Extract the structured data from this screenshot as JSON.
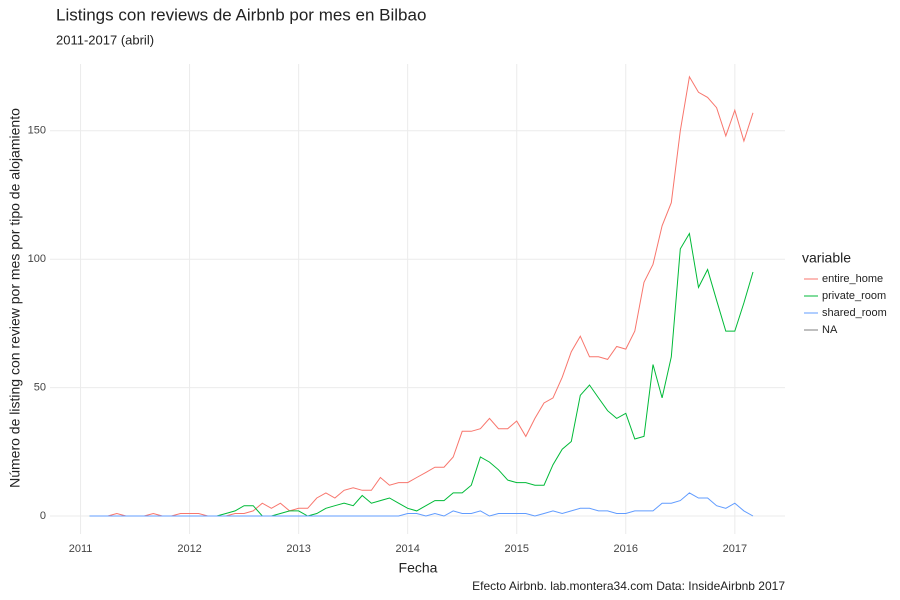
{
  "chart_data": {
    "type": "line",
    "title": "Listings con reviews de Airbnb por mes en Bilbao",
    "subtitle": "2011-2017 (abril)",
    "x_label": "Fecha",
    "y_label": "Número de listing con review por mes por tipo de alojamiento",
    "caption": "Efecto Airbnb. lab.montera34.com Data: InsideAirbnb 2017",
    "legend_title": "variable",
    "legend_position": "right",
    "grid": true,
    "xlim": [
      2010.72,
      2017.46
    ],
    "xticks": [
      2011,
      2012,
      2013,
      2014,
      2015,
      2016,
      2017
    ],
    "ylim": [
      -7,
      176
    ],
    "yticks": [
      0,
      50,
      100,
      150
    ],
    "x": [
      2011.083,
      2011.167,
      2011.25,
      2011.333,
      2011.417,
      2011.5,
      2011.583,
      2011.667,
      2011.75,
      2011.833,
      2011.917,
      2012,
      2012.083,
      2012.167,
      2012.25,
      2012.333,
      2012.417,
      2012.5,
      2012.583,
      2012.667,
      2012.75,
      2012.833,
      2012.917,
      2013,
      2013.083,
      2013.167,
      2013.25,
      2013.333,
      2013.417,
      2013.5,
      2013.583,
      2013.667,
      2013.75,
      2013.833,
      2013.917,
      2014,
      2014.083,
      2014.167,
      2014.25,
      2014.333,
      2014.417,
      2014.5,
      2014.583,
      2014.667,
      2014.75,
      2014.833,
      2014.917,
      2015,
      2015.083,
      2015.167,
      2015.25,
      2015.333,
      2015.417,
      2015.5,
      2015.583,
      2015.667,
      2015.75,
      2015.833,
      2015.917,
      2016,
      2016.083,
      2016.167,
      2016.25,
      2016.333,
      2016.417,
      2016.5,
      2016.583,
      2016.667,
      2016.75,
      2016.833,
      2016.917,
      2017,
      2017.083,
      2017.167
    ],
    "series": [
      {
        "name": "entire_home",
        "color": "#F8766D",
        "values": [
          0,
          0,
          0,
          1,
          0,
          0,
          0,
          1,
          0,
          0,
          1,
          1,
          1,
          0,
          0,
          0,
          1,
          1,
          2,
          5,
          3,
          5,
          2,
          3,
          3,
          7,
          9,
          7,
          10,
          11,
          10,
          10,
          15,
          12,
          13,
          13,
          15,
          17,
          19,
          19,
          23,
          33,
          33,
          34,
          38,
          34,
          34,
          37,
          31,
          38,
          44,
          46,
          54,
          64,
          70,
          62,
          62,
          61,
          66,
          65,
          72,
          91,
          98,
          113,
          122,
          150,
          171,
          165,
          163,
          159,
          148,
          158,
          146,
          157
        ]
      },
      {
        "name": "private_room",
        "color": "#00BA38",
        "values": [
          0,
          0,
          0,
          0,
          0,
          0,
          0,
          0,
          0,
          0,
          0,
          0,
          0,
          0,
          0,
          1,
          2,
          4,
          4,
          0,
          0,
          1,
          2,
          2,
          0,
          1,
          3,
          4,
          5,
          4,
          8,
          5,
          6,
          7,
          5,
          3,
          2,
          4,
          6,
          6,
          9,
          9,
          12,
          23,
          21,
          18,
          14,
          13,
          13,
          12,
          12,
          20,
          26,
          29,
          47,
          51,
          46,
          41,
          38,
          40,
          30,
          31,
          59,
          46,
          62,
          104,
          110,
          89,
          96,
          84,
          72,
          72,
          83,
          95
        ]
      },
      {
        "name": "shared_room",
        "color": "#619CFF",
        "values": [
          0,
          0,
          0,
          0,
          0,
          0,
          0,
          0,
          0,
          0,
          0,
          0,
          0,
          0,
          0,
          0,
          0,
          0,
          0,
          0,
          0,
          0,
          0,
          0,
          0,
          0,
          0,
          0,
          0,
          0,
          0,
          0,
          0,
          0,
          0,
          1,
          1,
          0,
          1,
          0,
          2,
          1,
          1,
          2,
          0,
          1,
          1,
          1,
          1,
          0,
          1,
          2,
          1,
          2,
          3,
          3,
          2,
          2,
          1,
          1,
          2,
          2,
          2,
          5,
          5,
          6,
          9,
          7,
          7,
          4,
          3,
          5,
          2,
          0
        ]
      },
      {
        "name": "NA",
        "color": "#7F7F7F",
        "values": [
          null,
          null,
          null,
          null,
          null,
          null,
          null,
          null,
          null,
          null,
          null,
          null,
          null,
          null,
          null,
          null,
          null,
          null,
          null,
          null,
          null,
          null,
          null,
          null,
          null,
          null,
          null,
          null,
          null,
          null,
          null,
          null,
          null,
          null,
          null,
          null,
          null,
          null,
          null,
          null,
          null,
          null,
          null,
          null,
          null,
          null,
          null,
          null,
          null,
          null,
          null,
          null,
          null,
          null,
          null,
          null,
          null,
          null,
          null,
          null,
          null,
          null,
          null,
          null,
          null,
          null,
          null,
          null,
          null,
          null,
          null,
          null,
          null,
          null
        ]
      }
    ]
  }
}
